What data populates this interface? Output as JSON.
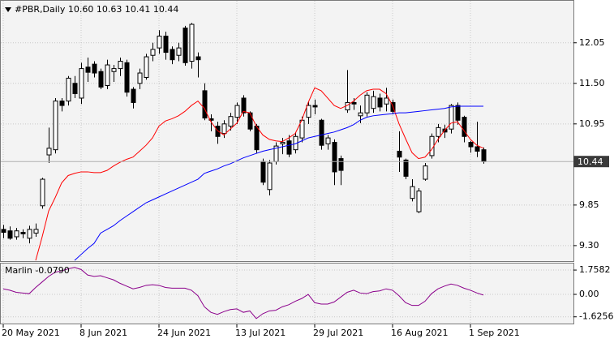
{
  "chart_data": [
    {
      "type": "candlestick",
      "title": "#PBR,Daily  10.60 10.63 10.41 10.44",
      "categories": [
        "20 May 2021",
        null,
        null,
        null,
        null,
        null,
        null,
        null,
        null,
        null,
        null,
        null,
        "8 Jun 2021",
        null,
        null,
        null,
        null,
        null,
        null,
        null,
        null,
        null,
        null,
        null,
        "24 Jun 2021",
        null,
        null,
        null,
        null,
        null,
        null,
        null,
        null,
        null,
        null,
        null,
        "13 Jul 2021",
        null,
        null,
        null,
        null,
        null,
        null,
        null,
        null,
        null,
        null,
        null,
        "29 Jul 2021",
        null,
        null,
        null,
        null,
        null,
        null,
        null,
        null,
        null,
        null,
        null,
        "16 Aug 2021",
        null,
        null,
        null,
        null,
        null,
        null,
        null,
        null,
        null,
        null,
        null,
        "1 Sep 2021",
        null,
        null
      ],
      "open": [
        9.52,
        9.5,
        9.42,
        9.48,
        9.4,
        9.47,
        9.84,
        10.53,
        10.6,
        11.26,
        11.26,
        11.5,
        11.3,
        11.72,
        11.76,
        11.66,
        11.47,
        11.66,
        11.7,
        11.78,
        11.42,
        11.5,
        11.58,
        11.88,
        11.98,
        12.14,
        11.96,
        11.88,
        12.25,
        11.8,
        11.86,
        11.4,
        11.02,
        10.92,
        10.82,
        10.92,
        11.04,
        11.3,
        11.1,
        10.92,
        10.44,
        10.06,
        10.44,
        10.68,
        10.72,
        10.6,
        10.76,
        11.04,
        11.2,
        11.0,
        10.68,
        10.7,
        10.48,
        11.14,
        11.24,
        11.06,
        11.1,
        11.16,
        11.3,
        11.22,
        11.24,
        10.58,
        10.46,
        9.94,
        9.76,
        10.2,
        10.52,
        10.78,
        10.88,
        10.88,
        11.2,
        11.04,
        10.7,
        10.64,
        10.6
      ],
      "high": [
        9.58,
        9.56,
        9.54,
        9.52,
        9.57,
        9.6,
        10.22,
        10.9,
        11.3,
        11.3,
        11.6,
        11.6,
        11.78,
        11.85,
        11.8,
        11.7,
        11.82,
        11.75,
        11.85,
        11.82,
        11.45,
        11.7,
        11.9,
        12.05,
        12.22,
        12.2,
        12.0,
        12.05,
        12.28,
        12.32,
        11.92,
        11.5,
        11.08,
        10.98,
        11.0,
        11.1,
        11.24,
        11.34,
        11.12,
        10.95,
        10.48,
        10.46,
        10.7,
        10.76,
        10.8,
        10.84,
        11.05,
        11.25,
        11.28,
        11.02,
        10.8,
        10.74,
        10.52,
        11.68,
        11.3,
        11.2,
        11.38,
        11.4,
        11.36,
        11.44,
        11.28,
        10.85,
        10.48,
        10.2,
        10.08,
        10.42,
        10.82,
        10.95,
        10.94,
        11.22,
        11.24,
        11.06,
        10.72,
        10.98,
        10.63
      ],
      "low": [
        9.4,
        9.38,
        9.38,
        9.4,
        9.33,
        9.42,
        9.8,
        10.42,
        10.55,
        11.12,
        11.2,
        11.3,
        11.22,
        11.52,
        11.58,
        11.42,
        11.42,
        11.52,
        11.6,
        11.32,
        11.16,
        11.42,
        11.55,
        11.8,
        11.9,
        11.82,
        11.76,
        11.8,
        11.74,
        11.7,
        11.58,
        11.0,
        10.85,
        10.68,
        10.76,
        10.86,
        10.95,
        11.05,
        10.85,
        10.55,
        10.12,
        9.98,
        10.4,
        10.54,
        10.5,
        10.55,
        10.7,
        10.95,
        11.08,
        10.6,
        10.6,
        10.12,
        10.12,
        11.1,
        11.14,
        10.96,
        11.05,
        11.1,
        11.12,
        11.12,
        11.08,
        10.3,
        10.2,
        9.9,
        9.74,
        10.18,
        10.48,
        10.7,
        10.76,
        10.82,
        10.94,
        10.7,
        10.56,
        10.5,
        10.41
      ],
      "close": [
        9.48,
        9.4,
        9.5,
        9.46,
        9.52,
        9.52,
        10.2,
        10.62,
        11.26,
        11.2,
        11.57,
        11.36,
        11.7,
        11.65,
        11.64,
        11.45,
        11.75,
        11.7,
        11.8,
        11.38,
        11.24,
        11.64,
        11.86,
        11.96,
        12.14,
        11.92,
        11.82,
        11.98,
        11.78,
        12.3,
        11.82,
        11.03,
        11.0,
        10.78,
        10.95,
        11.05,
        11.2,
        11.1,
        10.88,
        10.6,
        10.16,
        10.42,
        10.65,
        10.7,
        10.54,
        10.78,
        11.0,
        11.2,
        11.18,
        10.66,
        10.76,
        10.3,
        10.32,
        11.24,
        11.22,
        11.1,
        11.34,
        11.32,
        11.18,
        11.3,
        11.12,
        10.5,
        10.24,
        10.1,
        10.04,
        10.38,
        10.78,
        10.9,
        10.84,
        11.2,
        11.0,
        10.78,
        10.64,
        10.58,
        10.44
      ],
      "lines": [
        {
          "color": "#ff0000",
          "values": [
            null,
            null,
            null,
            null,
            null,
            9.1,
            9.42,
            9.77,
            9.95,
            10.15,
            10.25,
            10.28,
            10.3,
            10.3,
            10.29,
            10.29,
            10.32,
            10.38,
            10.43,
            10.47,
            10.5,
            10.58,
            10.66,
            10.76,
            10.92,
            10.99,
            11.02,
            11.06,
            11.12,
            11.2,
            11.26,
            11.16,
            10.98,
            10.86,
            10.8,
            10.88,
            10.96,
            11.12,
            11.1,
            10.92,
            10.8,
            10.74,
            10.72,
            10.71,
            10.76,
            10.82,
            11.0,
            11.24,
            11.44,
            11.4,
            11.3,
            11.2,
            11.16,
            11.2,
            11.26,
            11.34,
            11.4,
            11.42,
            11.42,
            11.36,
            11.2,
            10.95,
            10.75,
            10.56,
            10.48,
            10.5,
            10.6,
            10.74,
            10.86,
            10.96,
            10.98,
            10.86,
            10.74,
            10.66,
            10.62
          ]
        },
        {
          "color": "#0000ff",
          "values": [
            null,
            null,
            null,
            null,
            null,
            null,
            null,
            null,
            null,
            null,
            null,
            9.1,
            9.18,
            9.26,
            9.33,
            9.47,
            9.52,
            9.57,
            9.64,
            9.7,
            9.76,
            9.82,
            9.88,
            9.92,
            9.96,
            10.0,
            10.04,
            10.08,
            10.12,
            10.16,
            10.2,
            10.28,
            10.31,
            10.34,
            10.38,
            10.41,
            10.45,
            10.49,
            10.52,
            10.55,
            10.58,
            10.6,
            10.62,
            10.64,
            10.66,
            10.68,
            10.72,
            10.76,
            10.78,
            10.8,
            10.82,
            10.84,
            10.87,
            10.9,
            10.94,
            11.0,
            11.04,
            11.06,
            11.07,
            11.08,
            11.09,
            11.1,
            11.1,
            11.11,
            11.12,
            11.13,
            11.14,
            11.15,
            11.16,
            11.18,
            11.19,
            11.19,
            11.19,
            11.19,
            11.19
          ]
        }
      ],
      "last_price": 10.44,
      "ylim": [
        9.09,
        12.63
      ],
      "yticks": [
        12.05,
        {
          "value": 11.5,
          "label": "11.50"
        },
        10.95,
        9.85,
        {
          "value": 9.3,
          "label": "9.30"
        }
      ],
      "grid": true
    },
    {
      "type": "line",
      "title": "Marlin -0.0790",
      "color": "#8b008b",
      "values": [
        0.4,
        0.3,
        0.15,
        0.1,
        0.05,
        0.5,
        0.9,
        1.3,
        1.6,
        1.7,
        1.85,
        1.95,
        1.8,
        1.4,
        1.3,
        1.35,
        1.2,
        1.05,
        0.8,
        0.6,
        0.4,
        0.5,
        0.65,
        0.7,
        0.65,
        0.5,
        0.45,
        0.45,
        0.45,
        0.3,
        -0.1,
        -0.9,
        -1.3,
        -1.45,
        -1.25,
        -1.1,
        -1.05,
        -1.3,
        -1.2,
        -1.75,
        -1.4,
        -1.2,
        -1.15,
        -0.9,
        -0.75,
        -0.5,
        -0.3,
        0.0,
        -0.6,
        -0.7,
        -0.7,
        -0.55,
        -0.2,
        0.15,
        0.3,
        0.1,
        0.05,
        0.2,
        0.25,
        0.4,
        0.3,
        -0.1,
        -0.6,
        -0.8,
        -0.8,
        -0.5,
        0.05,
        0.4,
        0.6,
        0.75,
        0.65,
        0.45,
        0.3,
        0.1,
        -0.05
      ],
      "ylim": [
        -2.17,
        2.29
      ],
      "yticks": [
        1.7582,
        {
          "value": 0,
          "label": "0.00"
        },
        -1.6256
      ],
      "grid": true
    }
  ]
}
